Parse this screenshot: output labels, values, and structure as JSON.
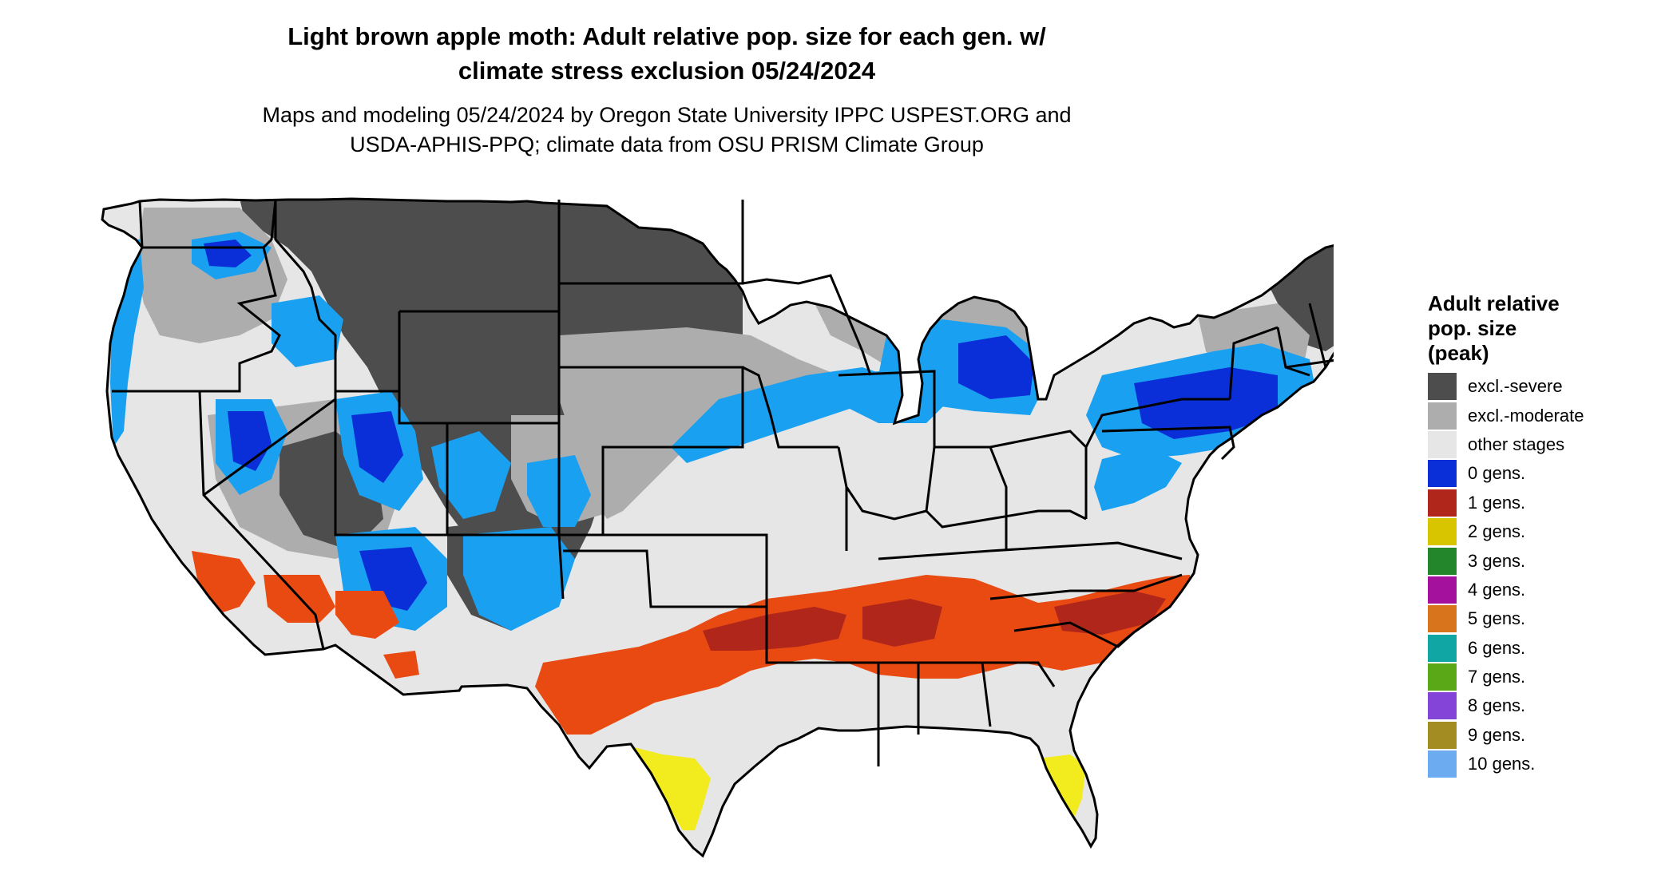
{
  "title": {
    "line1": "Light brown apple moth: Adult relative pop. size for each gen. w/",
    "line2": "climate stress exclusion 05/24/2024"
  },
  "subtitle": {
    "line1": "Maps and modeling 05/24/2024 by Oregon State University IPPC USPEST.ORG and",
    "line2": "USDA-APHIS-PPQ; climate data from OSU PRISM Climate Group"
  },
  "legend": {
    "title_lines": [
      "Adult relative",
      "pop. size",
      "(peak)"
    ],
    "items": [
      {
        "label": "excl.-severe",
        "color": "#4d4d4d"
      },
      {
        "label": "excl.-moderate",
        "color": "#adadad"
      },
      {
        "label": "other stages",
        "color": "#e6e6e6"
      },
      {
        "label": "0 gens.",
        "color": "#0a2fd8"
      },
      {
        "label": "1 gens.",
        "color": "#b0261a"
      },
      {
        "label": "2 gens.",
        "color": "#d9c400"
      },
      {
        "label": "3 gens.",
        "color": "#23862a"
      },
      {
        "label": "4 gens.",
        "color": "#a4129d"
      },
      {
        "label": "5 gens.",
        "color": "#d8741b"
      },
      {
        "label": "6 gens.",
        "color": "#0fa6a3"
      },
      {
        "label": "7 gens.",
        "color": "#5aa818"
      },
      {
        "label": "8 gens.",
        "color": "#8444d8"
      },
      {
        "label": "9 gens.",
        "color": "#a38c22"
      },
      {
        "label": "10 gens.",
        "color": "#6cabf0"
      }
    ]
  },
  "map_colors": {
    "other_stages": "#e6e6e6",
    "excl_severe": "#4d4d4d",
    "excl_moderate": "#adadad",
    "gen0_blue": "#0a2fd8",
    "light_blue": "#1aa0f0",
    "red_orange": "#e84a12",
    "dark_red": "#b0261a",
    "yellow": "#f2ec1e",
    "green": "#3dc23a",
    "border": "#000000"
  }
}
